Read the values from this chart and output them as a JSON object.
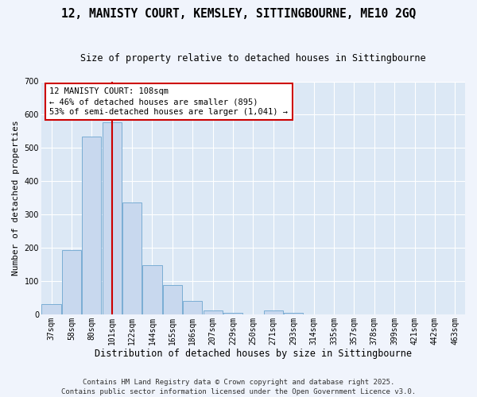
{
  "title": "12, MANISTY COURT, KEMSLEY, SITTINGBOURNE, ME10 2GQ",
  "subtitle": "Size of property relative to detached houses in Sittingbourne",
  "xlabel": "Distribution of detached houses by size in Sittingbourne",
  "ylabel": "Number of detached properties",
  "bar_color": "#c8d8ee",
  "bar_edge_color": "#7aadd4",
  "plot_bg_color": "#dce8f5",
  "fig_bg_color": "#f0f4fc",
  "grid_color": "#ffffff",
  "categories": [
    "37sqm",
    "58sqm",
    "80sqm",
    "101sqm",
    "122sqm",
    "144sqm",
    "165sqm",
    "186sqm",
    "207sqm",
    "229sqm",
    "250sqm",
    "271sqm",
    "293sqm",
    "314sqm",
    "335sqm",
    "357sqm",
    "378sqm",
    "399sqm",
    "421sqm",
    "442sqm",
    "463sqm"
  ],
  "values": [
    30,
    193,
    535,
    578,
    335,
    148,
    88,
    40,
    12,
    5,
    0,
    12,
    5,
    0,
    0,
    0,
    0,
    0,
    0,
    0,
    0
  ],
  "red_line_x": 3.0,
  "annotation_title": "12 MANISTY COURT: 108sqm",
  "annotation_line1": "← 46% of detached houses are smaller (895)",
  "annotation_line2": "53% of semi-detached houses are larger (1,041) →",
  "annotation_color": "#cc0000",
  "ylim": [
    0,
    700
  ],
  "yticks": [
    0,
    100,
    200,
    300,
    400,
    500,
    600,
    700
  ],
  "footnote1": "Contains HM Land Registry data © Crown copyright and database right 2025.",
  "footnote2": "Contains public sector information licensed under the Open Government Licence v3.0.",
  "title_fontsize": 10.5,
  "subtitle_fontsize": 8.5,
  "ylabel_fontsize": 8,
  "xlabel_fontsize": 8.5,
  "tick_fontsize": 7,
  "footnote_fontsize": 6.5,
  "annot_fontsize": 7.5
}
